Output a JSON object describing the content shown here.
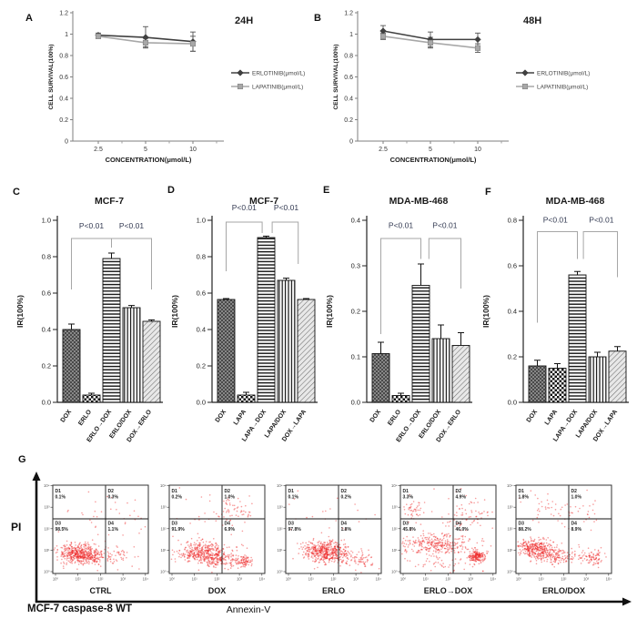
{
  "figure": {
    "panel_letters": [
      "A",
      "B",
      "C",
      "D",
      "E",
      "F",
      "G"
    ],
    "g": {
      "y_axis_label": "PI",
      "x_axis_label": "Annexin-V",
      "footer": "MCF-7 caspase-8  WT"
    }
  },
  "colors": {
    "erlotinib": "#404040",
    "lapatinib": "#a8a8a8",
    "dot_red": "#ee2222",
    "p_label": "#333a52",
    "bracket": "#a6a6a6",
    "axis": "#7f7f7f",
    "text": "#1a1a1a"
  },
  "chart_data": [
    {
      "id": "A",
      "type": "line",
      "panel_label": "A",
      "title": "24H",
      "xlabel": "CONCENTRATION(μmol/L)",
      "ylabel": "CELL SURVIVAL(100%)",
      "x_ticks": [
        "2.5",
        "5",
        "10"
      ],
      "y_ticks": [
        0,
        0.2,
        0.4,
        0.6,
        0.8,
        1,
        1.2
      ],
      "ylim": [
        0,
        1.2
      ],
      "legend_position": "right",
      "series": [
        {
          "name": "ERLOTINIB(μmol/L)",
          "marker": "diamond",
          "color": "#404040",
          "values": [
            0.99,
            0.97,
            0.93
          ],
          "errors": [
            0.02,
            0.1,
            0.09
          ]
        },
        {
          "name": "LAPATINIB(μmol/L)",
          "marker": "square",
          "color": "#a8a8a8",
          "values": [
            0.98,
            0.92,
            0.91
          ],
          "errors": [
            0.02,
            0.04,
            0.07
          ]
        }
      ]
    },
    {
      "id": "B",
      "type": "line",
      "panel_label": "B",
      "title": "48H",
      "xlabel": "CONCENTRATION(μmol/L)",
      "ylabel": "CELL SURVIVAL(100%)",
      "x_ticks": [
        "2.5",
        "5",
        "10"
      ],
      "y_ticks": [
        0,
        0.2,
        0.4,
        0.6,
        0.8,
        1,
        1.2
      ],
      "ylim": [
        0,
        1.2
      ],
      "legend_position": "right",
      "series": [
        {
          "name": "ERLOTINIB(μmol/L)",
          "marker": "diamond",
          "color": "#404040",
          "values": [
            1.03,
            0.95,
            0.95
          ],
          "errors": [
            0.05,
            0.07,
            0.06
          ]
        },
        {
          "name": "LAPATINIB(μmol/L)",
          "marker": "square",
          "color": "#a8a8a8",
          "values": [
            0.98,
            0.92,
            0.87
          ],
          "errors": [
            0.03,
            0.05,
            0.04
          ]
        }
      ]
    },
    {
      "id": "C",
      "type": "bar",
      "panel_label": "C",
      "title": "MCF-7",
      "ylabel": "IR(100%)",
      "ylim": [
        0,
        1.0
      ],
      "y_ticks": [
        0,
        0.2,
        0.4,
        0.6,
        0.8,
        1.0
      ],
      "categories": [
        "DOX",
        "ERLO",
        "ERLO→DOX",
        "ERLO/DOX",
        "DOX→ERLO"
      ],
      "values": [
        0.4,
        0.04,
        0.79,
        0.52,
        0.445
      ],
      "errors": [
        0.03,
        0.01,
        0.03,
        0.012,
        0.008
      ],
      "patterns": [
        "crosshatch-dark",
        "checker",
        "hlines",
        "vlines",
        "diag"
      ],
      "significance": [
        {
          "label": "P<0.01",
          "x1": 0,
          "x2": 2,
          "top": 0.9,
          "y1": 0.62,
          "y2": 0.85,
          "lx": 1.0,
          "ly": 0.955
        },
        {
          "label": "P<0.01",
          "x1": 2,
          "x2": 4,
          "top": 0.9,
          "y1": 0.85,
          "y2": 0.62,
          "lx": 3.0,
          "ly": 0.955
        }
      ]
    },
    {
      "id": "D",
      "type": "bar",
      "panel_label": "D",
      "title": "MCF-7",
      "ylabel": "IR(100%)",
      "ylim": [
        0,
        1.0
      ],
      "y_ticks": [
        0,
        0.2,
        0.4,
        0.6,
        0.8,
        1.0
      ],
      "categories": [
        "DOX",
        "LAPA",
        "LAPA→DOX",
        "LAPA/DOX",
        "DOX→LAPA"
      ],
      "values": [
        0.565,
        0.04,
        0.905,
        0.67,
        0.565
      ],
      "errors": [
        0.005,
        0.015,
        0.008,
        0.012,
        0.005
      ],
      "patterns": [
        "crosshatch-dark",
        "checker",
        "hlines",
        "vlines",
        "diag"
      ],
      "significance": [
        {
          "label": "P<0.01",
          "x1": 0,
          "x2": 1.8,
          "top": 0.99,
          "y1": 0.72,
          "y2": 0.93,
          "lx": 0.9,
          "ly": 1.055
        },
        {
          "label": "P<0.01",
          "x1": 2.3,
          "x2": 3.6,
          "top": 0.99,
          "y1": 0.93,
          "y2": 0.76,
          "lx": 3.0,
          "ly": 1.055
        }
      ]
    },
    {
      "id": "E",
      "type": "bar",
      "panel_label": "E",
      "title": "MDA-MB-468",
      "ylabel": "IR(100%)",
      "ylim": [
        0,
        0.4
      ],
      "y_ticks": [
        0,
        0.1,
        0.2,
        0.3,
        0.4
      ],
      "categories": [
        "DOX",
        "ERLO",
        "ERLO→DOX",
        "ERLO/DOX",
        "DOX→ERLO"
      ],
      "values": [
        0.107,
        0.015,
        0.257,
        0.14,
        0.125
      ],
      "errors": [
        0.025,
        0.005,
        0.047,
        0.03,
        0.028
      ],
      "patterns": [
        "crosshatch-dark",
        "checker",
        "hlines",
        "vlines",
        "diag"
      ],
      "significance": [
        {
          "label": "P<0.01",
          "x1": 0,
          "x2": 2,
          "top": 0.36,
          "y1": 0.15,
          "y2": 0.315,
          "lx": 1.0,
          "ly": 0.383
        },
        {
          "label": "P<0.01",
          "x1": 2.4,
          "x2": 4,
          "top": 0.36,
          "y1": 0.315,
          "y2": 0.25,
          "lx": 3.2,
          "ly": 0.383
        }
      ]
    },
    {
      "id": "F",
      "type": "bar",
      "panel_label": "F",
      "title": "MDA-MB-468",
      "ylabel": "IR(100%)",
      "ylim": [
        0,
        0.8
      ],
      "y_ticks": [
        0,
        0.2,
        0.4,
        0.6,
        0.8
      ],
      "categories": [
        "DOX",
        "LAPA",
        "LAPA→DOX",
        "LAPA/DOX",
        "DOX→LAPA"
      ],
      "values": [
        0.16,
        0.15,
        0.56,
        0.2,
        0.225
      ],
      "errors": [
        0.025,
        0.02,
        0.015,
        0.02,
        0.02
      ],
      "patterns": [
        "crosshatch-dark",
        "checker",
        "hlines",
        "vlines",
        "diag"
      ],
      "significance": [
        {
          "label": "P<0.01",
          "x1": 0,
          "x2": 2,
          "top": 0.75,
          "y1": 0.35,
          "y2": 0.63,
          "lx": 0.9,
          "ly": 0.79
        },
        {
          "label": "P<0.01",
          "x1": 2.3,
          "x2": 4,
          "top": 0.75,
          "y1": 0.63,
          "y2": 0.55,
          "lx": 3.2,
          "ly": 0.79
        }
      ]
    },
    {
      "id": "G",
      "type": "flow_cytometry",
      "panel_label": "G",
      "x_axis_label": "Annexin-V",
      "y_axis_label": "PI",
      "footer": "MCF-7 caspase-8  WT",
      "axis_ticks": [
        "10⁰",
        "10¹",
        "10²",
        "10³",
        "10⁴"
      ],
      "plots": [
        {
          "label": "CTRL",
          "quadrants": {
            "D1": "0.1%",
            "D2": "0.3%",
            "D3": "98.5%",
            "D4": "1.1%"
          },
          "clusters": [
            {
              "cx": 0.26,
              "cy": 0.77,
              "sx": 0.1,
              "sy": 0.055,
              "n": 400
            },
            {
              "cx": 0.42,
              "cy": 0.81,
              "sx": 0.1,
              "sy": 0.05,
              "n": 130
            },
            {
              "cx": 0.62,
              "cy": 0.8,
              "sx": 0.1,
              "sy": 0.05,
              "n": 45
            },
            {
              "cx": 0.5,
              "cy": 0.3,
              "sx": 0.28,
              "sy": 0.14,
              "n": 28
            },
            {
              "cx": 0.8,
              "cy": 0.55,
              "sx": 0.12,
              "sy": 0.25,
              "n": 20
            }
          ]
        },
        {
          "label": "DOX",
          "quadrants": {
            "D1": "0.2%",
            "D2": "1.0%",
            "D3": "91.9%",
            "D4": "6.9%"
          },
          "clusters": [
            {
              "cx": 0.34,
              "cy": 0.76,
              "sx": 0.12,
              "sy": 0.06,
              "n": 340
            },
            {
              "cx": 0.5,
              "cy": 0.83,
              "sx": 0.1,
              "sy": 0.05,
              "n": 160
            },
            {
              "cx": 0.77,
              "cy": 0.86,
              "sx": 0.05,
              "sy": 0.035,
              "n": 90
            },
            {
              "cx": 0.72,
              "cy": 0.28,
              "sx": 0.09,
              "sy": 0.08,
              "n": 50
            },
            {
              "cx": 0.5,
              "cy": 0.5,
              "sx": 0.3,
              "sy": 0.25,
              "n": 45
            }
          ]
        },
        {
          "label": "ERLO",
          "quadrants": {
            "D1": "0.1%",
            "D2": "0.2%",
            "D3": "97.8%",
            "D4": "1.8%"
          },
          "clusters": [
            {
              "cx": 0.4,
              "cy": 0.75,
              "sx": 0.11,
              "sy": 0.06,
              "n": 440
            },
            {
              "cx": 0.62,
              "cy": 0.82,
              "sx": 0.12,
              "sy": 0.05,
              "n": 90
            },
            {
              "cx": 0.82,
              "cy": 0.85,
              "sx": 0.09,
              "sy": 0.04,
              "n": 45
            },
            {
              "cx": 0.5,
              "cy": 0.3,
              "sx": 0.28,
              "sy": 0.13,
              "n": 25
            }
          ]
        },
        {
          "label": "ERLO→DOX",
          "quadrants": {
            "D1": "3.3%",
            "D2": "4.9%",
            "D3": "45.8%",
            "D4": "46.0%"
          },
          "clusters": [
            {
              "cx": 0.38,
              "cy": 0.67,
              "sx": 0.19,
              "sy": 0.055,
              "n": 300
            },
            {
              "cx": 0.8,
              "cy": 0.81,
              "sx": 0.045,
              "sy": 0.035,
              "n": 180
            },
            {
              "cx": 0.13,
              "cy": 0.27,
              "sx": 0.07,
              "sy": 0.05,
              "n": 45
            },
            {
              "cx": 0.7,
              "cy": 0.3,
              "sx": 0.13,
              "sy": 0.09,
              "n": 55
            },
            {
              "cx": 0.45,
              "cy": 0.89,
              "sx": 0.2,
              "sy": 0.05,
              "n": 45
            },
            {
              "cx": 0.5,
              "cy": 0.52,
              "sx": 0.3,
              "sy": 0.22,
              "n": 55
            }
          ]
        },
        {
          "label": "ERLO/DOX",
          "quadrants": {
            "D1": "1.8%",
            "D2": "1.0%",
            "D3": "88.2%",
            "D4": "8.9%"
          },
          "clusters": [
            {
              "cx": 0.21,
              "cy": 0.71,
              "sx": 0.09,
              "sy": 0.05,
              "n": 300
            },
            {
              "cx": 0.4,
              "cy": 0.81,
              "sx": 0.13,
              "sy": 0.05,
              "n": 180
            },
            {
              "cx": 0.8,
              "cy": 0.81,
              "sx": 0.06,
              "sy": 0.05,
              "n": 85
            },
            {
              "cx": 0.3,
              "cy": 0.28,
              "sx": 0.14,
              "sy": 0.1,
              "n": 35
            },
            {
              "cx": 0.68,
              "cy": 0.3,
              "sx": 0.12,
              "sy": 0.1,
              "n": 30
            }
          ]
        }
      ]
    }
  ]
}
